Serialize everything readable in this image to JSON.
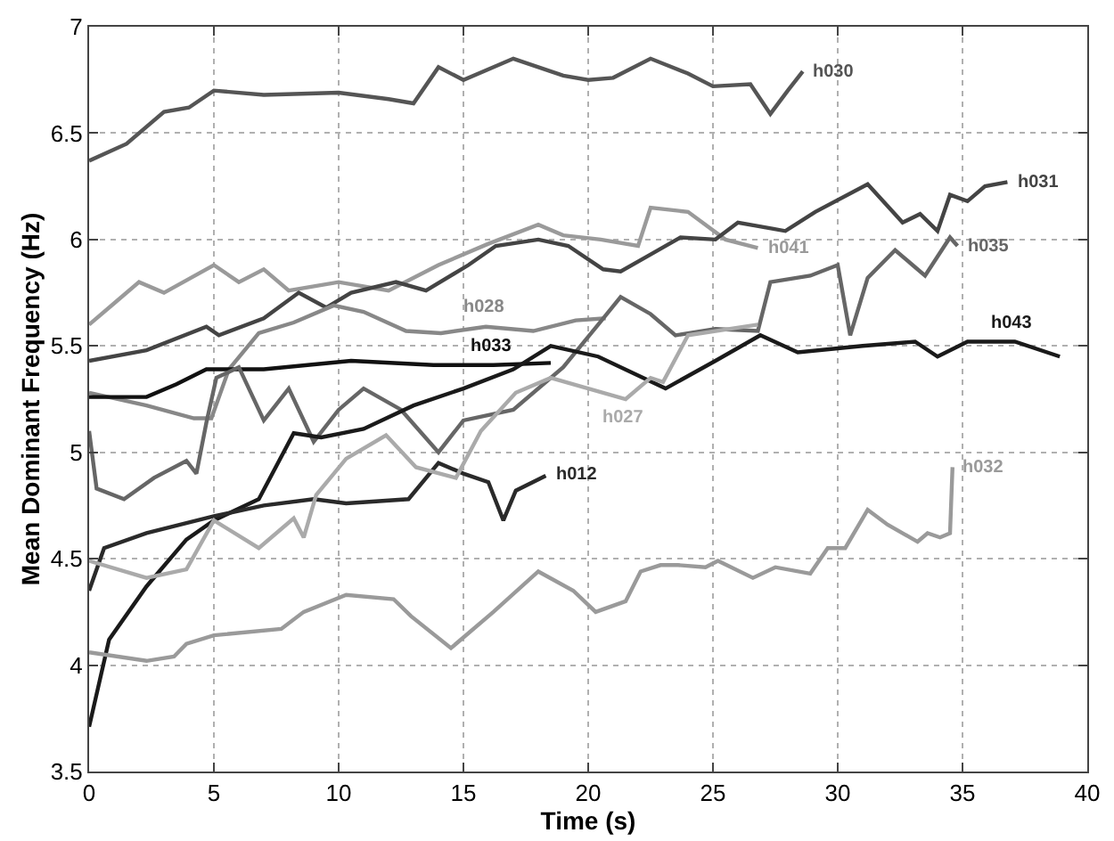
{
  "chart_data": {
    "type": "line",
    "xlabel": "Time (s)",
    "ylabel": "Mean Dominant Frequency (Hz)",
    "xlim": [
      0,
      40
    ],
    "ylim": [
      3.5,
      7
    ],
    "xticks": [
      0,
      5,
      10,
      15,
      20,
      25,
      30,
      35,
      40
    ],
    "yticks": [
      3.5,
      4,
      4.5,
      5,
      5.5,
      6,
      6.5,
      7
    ],
    "grid": true,
    "line_style": "solid",
    "marker": "none",
    "series": [
      {
        "name": "h030",
        "color": "#555555",
        "x": [
          0,
          1.5,
          3,
          4,
          5,
          7,
          10,
          12,
          13,
          14,
          15,
          17,
          19,
          20,
          21,
          22.5,
          24,
          25,
          26.5,
          27.3,
          28,
          28.6
        ],
        "values": [
          6.37,
          6.45,
          6.6,
          6.62,
          6.7,
          6.68,
          6.69,
          6.66,
          6.64,
          6.81,
          6.75,
          6.85,
          6.77,
          6.75,
          6.76,
          6.85,
          6.78,
          6.72,
          6.73,
          6.59,
          6.7,
          6.79
        ]
      },
      {
        "name": "h041",
        "color": "#9a9a9a",
        "x": [
          0,
          1,
          2,
          3,
          5,
          6,
          7,
          8,
          10,
          12,
          14,
          16,
          18,
          19,
          20.5,
          22,
          22.5,
          24,
          25.5,
          26.8
        ],
        "values": [
          5.6,
          5.7,
          5.8,
          5.75,
          5.88,
          5.8,
          5.86,
          5.76,
          5.8,
          5.76,
          5.88,
          5.98,
          6.07,
          6.02,
          6.0,
          5.97,
          6.15,
          6.13,
          6.0,
          5.96
        ]
      },
      {
        "name": "h031",
        "color": "#444444",
        "x": [
          0,
          2.3,
          4.7,
          5.2,
          7,
          8.4,
          9.5,
          10.5,
          12.3,
          13.5,
          15.2,
          16.3,
          18,
          19.2,
          20.6,
          21.3,
          22.5,
          23.7,
          25.1,
          26,
          27.9,
          29.1,
          31.2,
          32.6,
          33.3,
          34,
          34.5,
          35.2,
          35.9,
          36.8
        ],
        "values": [
          5.43,
          5.48,
          5.59,
          5.55,
          5.63,
          5.75,
          5.68,
          5.75,
          5.8,
          5.76,
          5.88,
          5.97,
          6.0,
          5.97,
          5.86,
          5.85,
          5.93,
          6.01,
          6.0,
          6.08,
          6.04,
          6.13,
          6.26,
          6.08,
          6.12,
          6.04,
          6.21,
          6.18,
          6.25,
          6.27
        ]
      },
      {
        "name": "h028",
        "color": "#888888",
        "x": [
          0,
          2.3,
          4.2,
          4.9,
          5.6,
          6.8,
          8.2,
          9.8,
          11,
          12.7,
          14.1,
          15.9,
          17.8,
          19.5,
          20.7
        ],
        "values": [
          5.28,
          5.22,
          5.16,
          5.16,
          5.39,
          5.56,
          5.61,
          5.69,
          5.66,
          5.57,
          5.56,
          5.59,
          5.57,
          5.62,
          5.63
        ]
      },
      {
        "name": "h033",
        "color": "#111111",
        "x": [
          0,
          2.3,
          3.5,
          4.7,
          7,
          10.5,
          13.8,
          16.2,
          18.5
        ],
        "values": [
          5.26,
          5.26,
          5.32,
          5.39,
          5.39,
          5.43,
          5.41,
          5.41,
          5.42
        ]
      },
      {
        "name": "h035",
        "color": "#666666",
        "x": [
          0,
          0.3,
          1.4,
          2.6,
          3.9,
          4.3,
          4.7,
          5.1,
          6,
          7,
          8,
          9,
          10,
          11,
          12.5,
          14,
          15,
          17,
          19,
          20.4,
          21.3,
          22.5,
          23.5,
          25.1,
          26.8,
          27.3,
          28.9,
          30,
          30.5,
          31.2,
          32.3,
          33,
          33.5,
          34.5,
          34.8
        ],
        "values": [
          5.1,
          4.83,
          4.78,
          4.88,
          4.96,
          4.9,
          5.14,
          5.35,
          5.4,
          5.15,
          5.3,
          5.05,
          5.2,
          5.3,
          5.2,
          5.0,
          5.15,
          5.2,
          5.4,
          5.6,
          5.73,
          5.65,
          5.55,
          5.58,
          5.57,
          5.8,
          5.83,
          5.88,
          5.55,
          5.82,
          5.95,
          5.88,
          5.83,
          6.01,
          5.97
        ]
      },
      {
        "name": "h043",
        "color": "#1a1a1a",
        "x": [
          0,
          0.8,
          2.3,
          3.9,
          5,
          6.8,
          8.2,
          9.3,
          11,
          13,
          15,
          17,
          18.5,
          20.4,
          23.1,
          25.1,
          26.9,
          28.4,
          31,
          33.1,
          34,
          35.2,
          37.1,
          38.9
        ],
        "values": [
          3.71,
          4.12,
          4.37,
          4.59,
          4.68,
          4.78,
          5.09,
          5.07,
          5.11,
          5.22,
          5.3,
          5.39,
          5.5,
          5.45,
          5.3,
          5.43,
          5.55,
          5.47,
          5.5,
          5.52,
          5.45,
          5.52,
          5.52,
          5.45
        ]
      },
      {
        "name": "h012",
        "color": "#2a2a2a",
        "x": [
          0,
          0.6,
          2.3,
          5,
          7,
          9,
          10.3,
          12.8,
          14,
          15,
          16,
          16.6,
          17.1,
          18.3
        ],
        "values": [
          4.35,
          4.55,
          4.62,
          4.7,
          4.75,
          4.78,
          4.76,
          4.78,
          4.95,
          4.9,
          4.86,
          4.68,
          4.82,
          4.89
        ]
      },
      {
        "name": "h027",
        "color": "#aaaaaa",
        "x": [
          0,
          2.3,
          3.9,
          5,
          6.8,
          8.2,
          8.6,
          9.1,
          10.3,
          11.9,
          13.1,
          14.7,
          15.7,
          17.1,
          18.5,
          20,
          21.5,
          22.5,
          23,
          24,
          26.8
        ],
        "values": [
          4.49,
          4.41,
          4.45,
          4.68,
          4.55,
          4.69,
          4.6,
          4.8,
          4.97,
          5.08,
          4.93,
          4.88,
          5.1,
          5.28,
          5.35,
          5.3,
          5.25,
          5.35,
          5.33,
          5.55,
          5.6
        ]
      },
      {
        "name": "h032",
        "color": "#9a9a9a",
        "x": [
          0,
          2.3,
          3.4,
          3.9,
          5,
          7.7,
          8.6,
          10.3,
          12.2,
          12.9,
          14.5,
          16.2,
          18,
          19.4,
          20.3,
          21.5,
          22.1,
          22.9,
          23.6,
          24.7,
          25.2,
          26.6,
          27.5,
          28.9,
          29.6,
          30.3,
          31.2,
          32,
          33.2,
          33.6,
          34.1,
          34.5,
          34.6
        ],
        "values": [
          4.06,
          4.02,
          4.04,
          4.1,
          4.14,
          4.17,
          4.25,
          4.33,
          4.31,
          4.23,
          4.08,
          4.25,
          4.44,
          4.35,
          4.25,
          4.3,
          4.44,
          4.47,
          4.47,
          4.46,
          4.49,
          4.41,
          4.46,
          4.43,
          4.55,
          4.55,
          4.73,
          4.66,
          4.58,
          4.62,
          4.6,
          4.62,
          4.93
        ]
      }
    ]
  }
}
